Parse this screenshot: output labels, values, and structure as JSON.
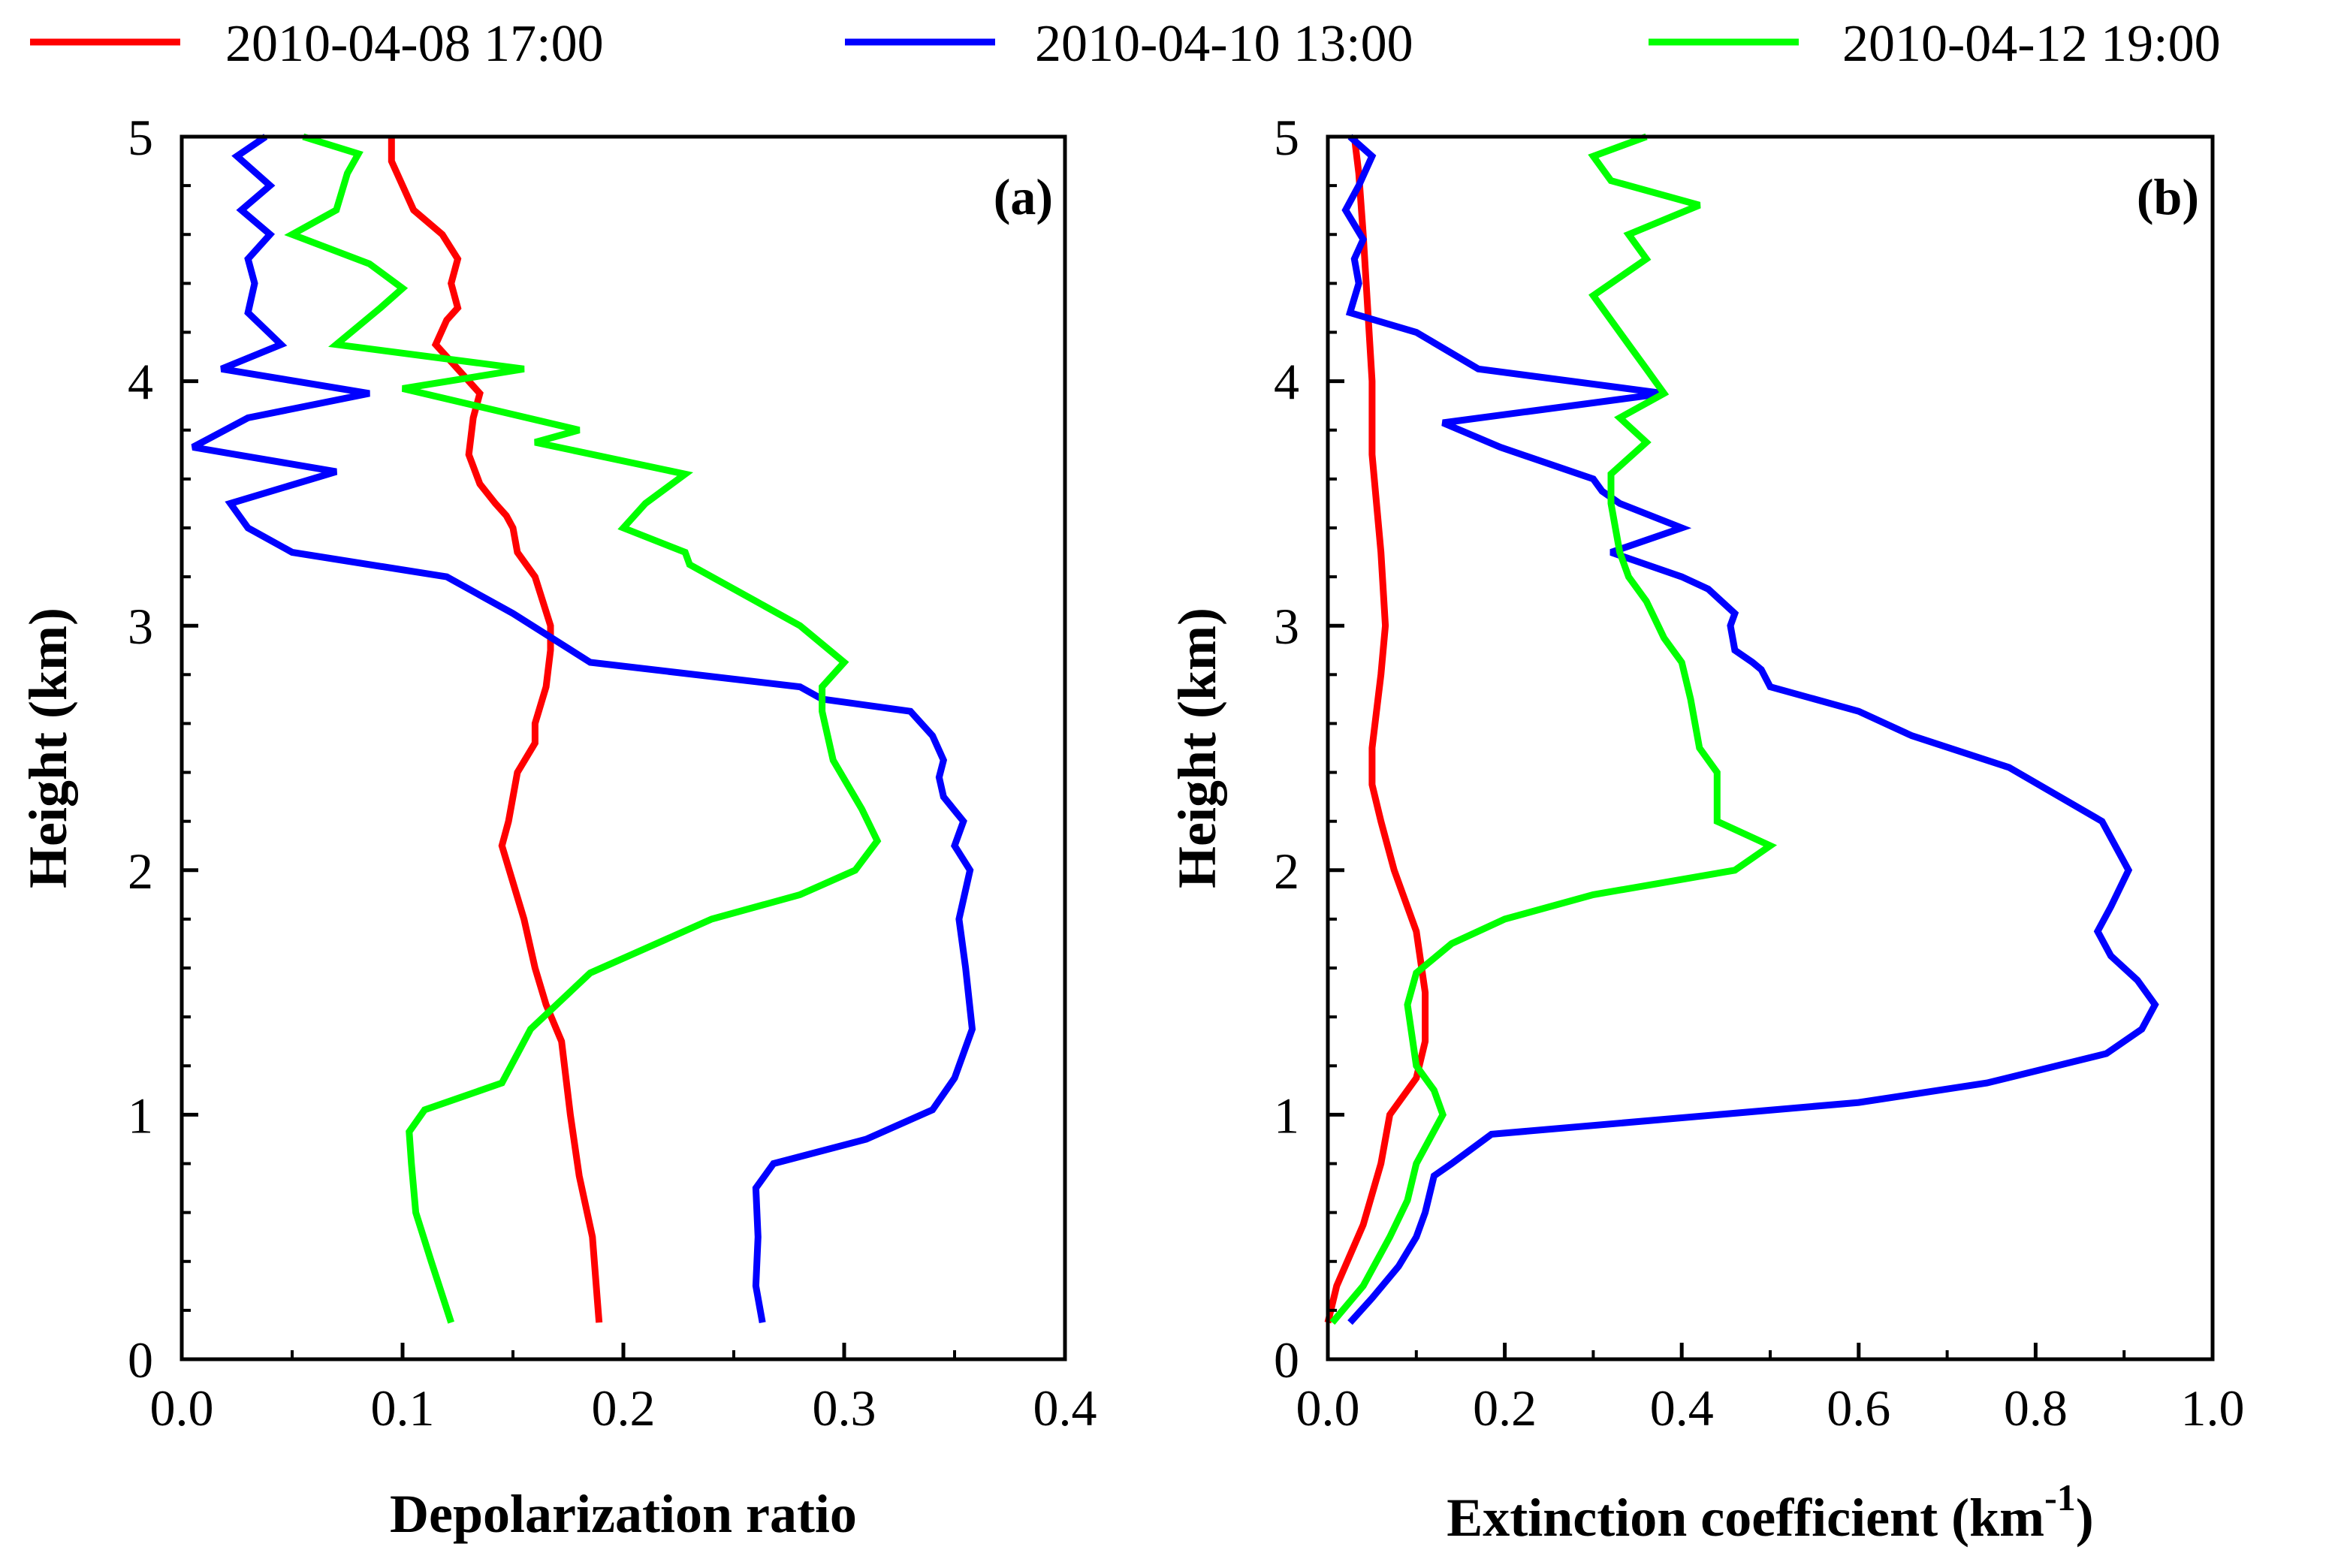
{
  "legend": {
    "items": [
      {
        "label": "2010-04-08 17:00",
        "color": "#ff0000"
      },
      {
        "label": "2010-04-10 13:00",
        "color": "#0000ff"
      },
      {
        "label": "2010-04-12 19:00",
        "color": "#00ff00"
      }
    ]
  },
  "chart_data": [
    {
      "type": "line",
      "panel_label": "(a)",
      "xlabel": "Depolarization ratio",
      "ylabel": "Height (km)",
      "xlim": [
        0.0,
        0.4
      ],
      "ylim": [
        0,
        5
      ],
      "xticks": [
        "0.0",
        "0.1",
        "0.2",
        "0.3",
        "0.4"
      ],
      "xtick_values": [
        0.0,
        0.1,
        0.2,
        0.3,
        0.4
      ],
      "yticks": [
        "0",
        "1",
        "2",
        "3",
        "4",
        "5"
      ],
      "ytick_values": [
        0,
        1,
        2,
        3,
        4,
        5
      ],
      "series": [
        {
          "name": "2010-04-08 17:00",
          "color": "#ff0000",
          "points": [
            [
              0.189,
              0.15
            ],
            [
              0.186,
              0.5
            ],
            [
              0.18,
              0.75
            ],
            [
              0.176,
              1.0
            ],
            [
              0.172,
              1.3
            ],
            [
              0.165,
              1.45
            ],
            [
              0.16,
              1.6
            ],
            [
              0.155,
              1.8
            ],
            [
              0.15,
              1.95
            ],
            [
              0.145,
              2.1
            ],
            [
              0.148,
              2.2
            ],
            [
              0.152,
              2.4
            ],
            [
              0.16,
              2.52
            ],
            [
              0.16,
              2.6
            ],
            [
              0.165,
              2.75
            ],
            [
              0.167,
              2.9
            ],
            [
              0.167,
              3.0
            ],
            [
              0.16,
              3.2
            ],
            [
              0.152,
              3.3
            ],
            [
              0.15,
              3.4
            ],
            [
              0.147,
              3.45
            ],
            [
              0.142,
              3.5
            ],
            [
              0.135,
              3.58
            ],
            [
              0.13,
              3.7
            ],
            [
              0.132,
              3.85
            ],
            [
              0.135,
              3.95
            ],
            [
              0.125,
              4.05
            ],
            [
              0.115,
              4.15
            ],
            [
              0.12,
              4.25
            ],
            [
              0.125,
              4.3
            ],
            [
              0.122,
              4.4
            ],
            [
              0.125,
              4.5
            ],
            [
              0.118,
              4.6
            ],
            [
              0.105,
              4.7
            ],
            [
              0.1,
              4.8
            ],
            [
              0.095,
              4.9
            ],
            [
              0.095,
              5.0
            ]
          ]
        },
        {
          "name": "2010-04-10 13:00",
          "color": "#0000ff",
          "points": [
            [
              0.263,
              0.15
            ],
            [
              0.26,
              0.3
            ],
            [
              0.261,
              0.5
            ],
            [
              0.26,
              0.7
            ],
            [
              0.268,
              0.8
            ],
            [
              0.31,
              0.9
            ],
            [
              0.34,
              1.02
            ],
            [
              0.35,
              1.15
            ],
            [
              0.358,
              1.35
            ],
            [
              0.355,
              1.6
            ],
            [
              0.352,
              1.8
            ],
            [
              0.357,
              2.0
            ],
            [
              0.35,
              2.1
            ],
            [
              0.354,
              2.2
            ],
            [
              0.345,
              2.3
            ],
            [
              0.343,
              2.38
            ],
            [
              0.345,
              2.45
            ],
            [
              0.34,
              2.55
            ],
            [
              0.33,
              2.65
            ],
            [
              0.29,
              2.7
            ],
            [
              0.28,
              2.75
            ],
            [
              0.185,
              2.85
            ],
            [
              0.15,
              3.05
            ],
            [
              0.12,
              3.2
            ],
            [
              0.05,
              3.3
            ],
            [
              0.03,
              3.4
            ],
            [
              0.022,
              3.5
            ],
            [
              0.07,
              3.63
            ],
            [
              0.005,
              3.73
            ],
            [
              0.03,
              3.85
            ],
            [
              0.085,
              3.95
            ],
            [
              0.018,
              4.05
            ],
            [
              0.045,
              4.15
            ],
            [
              0.03,
              4.28
            ],
            [
              0.033,
              4.4
            ],
            [
              0.03,
              4.5
            ],
            [
              0.04,
              4.6
            ],
            [
              0.027,
              4.7
            ],
            [
              0.04,
              4.8
            ],
            [
              0.025,
              4.92
            ],
            [
              0.038,
              5.0
            ]
          ]
        },
        {
          "name": "2010-04-12 19:00",
          "color": "#00ff00",
          "points": [
            [
              0.122,
              0.15
            ],
            [
              0.113,
              0.4
            ],
            [
              0.106,
              0.6
            ],
            [
              0.104,
              0.8
            ],
            [
              0.103,
              0.93
            ],
            [
              0.11,
              1.02
            ],
            [
              0.145,
              1.13
            ],
            [
              0.158,
              1.35
            ],
            [
              0.185,
              1.58
            ],
            [
              0.24,
              1.8
            ],
            [
              0.28,
              1.9
            ],
            [
              0.305,
              2.0
            ],
            [
              0.315,
              2.12
            ],
            [
              0.308,
              2.25
            ],
            [
              0.295,
              2.45
            ],
            [
              0.29,
              2.65
            ],
            [
              0.29,
              2.75
            ],
            [
              0.3,
              2.85
            ],
            [
              0.28,
              3.0
            ],
            [
              0.26,
              3.1
            ],
            [
              0.23,
              3.25
            ],
            [
              0.228,
              3.3
            ],
            [
              0.2,
              3.4
            ],
            [
              0.21,
              3.5
            ],
            [
              0.228,
              3.62
            ],
            [
              0.16,
              3.75
            ],
            [
              0.18,
              3.8
            ],
            [
              0.1,
              3.97
            ],
            [
              0.155,
              4.05
            ],
            [
              0.07,
              4.15
            ],
            [
              0.09,
              4.3
            ],
            [
              0.1,
              4.38
            ],
            [
              0.085,
              4.48
            ],
            [
              0.05,
              4.6
            ],
            [
              0.07,
              4.7
            ],
            [
              0.075,
              4.85
            ],
            [
              0.08,
              4.93
            ],
            [
              0.055,
              5.0
            ]
          ]
        }
      ]
    },
    {
      "type": "line",
      "panel_label": "(b)",
      "xlabel": "Extinction coefficient (km",
      "xlabel_superscript": "-1",
      "xlabel_suffix": ")",
      "ylabel": "Height (km)",
      "xlim": [
        0.0,
        1.0
      ],
      "ylim": [
        0,
        5
      ],
      "xticks": [
        "0.0",
        "0.2",
        "0.4",
        "0.6",
        "0.8",
        "1.0"
      ],
      "xtick_values": [
        0.0,
        0.2,
        0.4,
        0.6,
        0.8,
        1.0
      ],
      "yticks": [
        "0",
        "1",
        "2",
        "3",
        "4",
        "5"
      ],
      "ytick_values": [
        0,
        1,
        2,
        3,
        4,
        5
      ],
      "series": [
        {
          "name": "2010-04-08 17:00",
          "color": "#ff0000",
          "points": [
            [
              0.0,
              0.15
            ],
            [
              0.01,
              0.3
            ],
            [
              0.04,
              0.55
            ],
            [
              0.06,
              0.8
            ],
            [
              0.07,
              1.0
            ],
            [
              0.1,
              1.15
            ],
            [
              0.11,
              1.3
            ],
            [
              0.11,
              1.5
            ],
            [
              0.1,
              1.75
            ],
            [
              0.085,
              1.9
            ],
            [
              0.075,
              2.0
            ],
            [
              0.06,
              2.2
            ],
            [
              0.05,
              2.35
            ],
            [
              0.05,
              2.5
            ],
            [
              0.06,
              2.8
            ],
            [
              0.065,
              3.0
            ],
            [
              0.06,
              3.3
            ],
            [
              0.05,
              3.7
            ],
            [
              0.05,
              4.0
            ],
            [
              0.045,
              4.3
            ],
            [
              0.04,
              4.6
            ],
            [
              0.035,
              4.85
            ],
            [
              0.03,
              5.0
            ]
          ]
        },
        {
          "name": "2010-04-10 13:00",
          "color": "#0000ff",
          "points": [
            [
              0.025,
              0.15
            ],
            [
              0.05,
              0.25
            ],
            [
              0.08,
              0.38
            ],
            [
              0.1,
              0.5
            ],
            [
              0.11,
              0.6
            ],
            [
              0.12,
              0.75
            ],
            [
              0.14,
              0.8
            ],
            [
              0.185,
              0.92
            ],
            [
              0.6,
              1.05
            ],
            [
              0.745,
              1.13
            ],
            [
              0.88,
              1.25
            ],
            [
              0.92,
              1.35
            ],
            [
              0.935,
              1.45
            ],
            [
              0.915,
              1.55
            ],
            [
              0.885,
              1.65
            ],
            [
              0.87,
              1.75
            ],
            [
              0.885,
              1.85
            ],
            [
              0.905,
              2.0
            ],
            [
              0.875,
              2.2
            ],
            [
              0.77,
              2.42
            ],
            [
              0.66,
              2.55
            ],
            [
              0.6,
              2.65
            ],
            [
              0.5,
              2.75
            ],
            [
              0.49,
              2.82
            ],
            [
              0.48,
              2.85
            ],
            [
              0.46,
              2.9
            ],
            [
              0.455,
              3.0
            ],
            [
              0.46,
              3.05
            ],
            [
              0.43,
              3.15
            ],
            [
              0.4,
              3.2
            ],
            [
              0.32,
              3.3
            ],
            [
              0.4,
              3.4
            ],
            [
              0.33,
              3.5
            ],
            [
              0.31,
              3.55
            ],
            [
              0.3,
              3.6
            ],
            [
              0.195,
              3.73
            ],
            [
              0.13,
              3.83
            ],
            [
              0.38,
              3.95
            ],
            [
              0.17,
              4.05
            ],
            [
              0.1,
              4.2
            ],
            [
              0.025,
              4.28
            ],
            [
              0.035,
              4.4
            ],
            [
              0.03,
              4.5
            ],
            [
              0.04,
              4.58
            ],
            [
              0.02,
              4.7
            ],
            [
              0.035,
              4.8
            ],
            [
              0.05,
              4.92
            ],
            [
              0.025,
              5.0
            ]
          ]
        },
        {
          "name": "2010-04-12 19:00",
          "color": "#00ff00",
          "points": [
            [
              0.005,
              0.15
            ],
            [
              0.04,
              0.3
            ],
            [
              0.07,
              0.5
            ],
            [
              0.09,
              0.65
            ],
            [
              0.1,
              0.8
            ],
            [
              0.13,
              1.0
            ],
            [
              0.12,
              1.1
            ],
            [
              0.1,
              1.2
            ],
            [
              0.09,
              1.45
            ],
            [
              0.1,
              1.58
            ],
            [
              0.14,
              1.7
            ],
            [
              0.2,
              1.8
            ],
            [
              0.3,
              1.9
            ],
            [
              0.46,
              2.0
            ],
            [
              0.5,
              2.1
            ],
            [
              0.44,
              2.2
            ],
            [
              0.44,
              2.4
            ],
            [
              0.42,
              2.5
            ],
            [
              0.41,
              2.7
            ],
            [
              0.4,
              2.85
            ],
            [
              0.38,
              2.95
            ],
            [
              0.36,
              3.1
            ],
            [
              0.34,
              3.2
            ],
            [
              0.33,
              3.3
            ],
            [
              0.32,
              3.5
            ],
            [
              0.32,
              3.62
            ],
            [
              0.36,
              3.75
            ],
            [
              0.33,
              3.85
            ],
            [
              0.38,
              3.95
            ],
            [
              0.36,
              4.05
            ],
            [
              0.34,
              4.15
            ],
            [
              0.3,
              4.35
            ],
            [
              0.36,
              4.5
            ],
            [
              0.34,
              4.6
            ],
            [
              0.42,
              4.72
            ],
            [
              0.32,
              4.82
            ],
            [
              0.3,
              4.92
            ],
            [
              0.36,
              5.0
            ]
          ]
        }
      ]
    }
  ]
}
